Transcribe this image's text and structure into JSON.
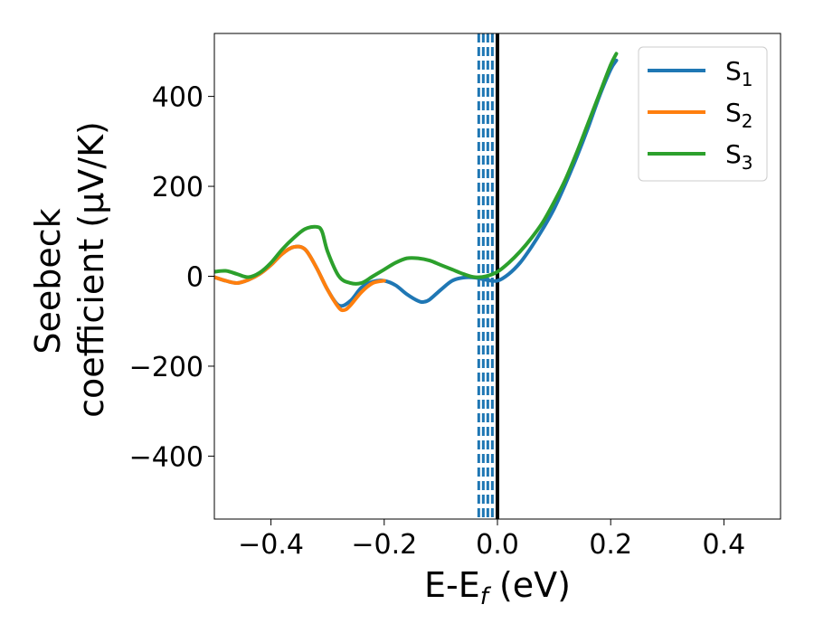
{
  "chart_data": {
    "type": "line",
    "xlabel": {
      "main": "E-E",
      "sub": "f",
      "unit": " (eV)"
    },
    "ylabel": {
      "line1": "Seebeck",
      "line2": "coefficient  (μV/K)"
    },
    "xlim": [
      -0.5,
      0.5
    ],
    "ylim": [
      -540,
      540
    ],
    "xticks": [
      -0.4,
      -0.2,
      0.0,
      0.2,
      0.4
    ],
    "xtick_labels": [
      "−0.4",
      "−0.2",
      "0.0",
      "0.2",
      "0.4"
    ],
    "yticks": [
      -400,
      -200,
      0,
      200,
      400
    ],
    "ytick_labels": [
      "−400",
      "−200",
      "0",
      "200",
      "400"
    ],
    "grid": false,
    "legend_position": "top-right",
    "vlines": [
      {
        "x": 0.0,
        "style": "solid",
        "color": "#000000"
      },
      {
        "x": -0.033,
        "style": "dashed",
        "color": "#1f77b4"
      },
      {
        "x": -0.025,
        "style": "dashed",
        "color": "#1f77b4"
      },
      {
        "x": -0.017,
        "style": "dashed",
        "color": "#1f77b4"
      },
      {
        "x": -0.009,
        "style": "dashed",
        "color": "#1f77b4"
      }
    ],
    "series": [
      {
        "name": "S",
        "sub": "1",
        "color": "#1f77b4",
        "x": [
          -0.5,
          -0.48,
          -0.46,
          -0.44,
          -0.42,
          -0.4,
          -0.38,
          -0.36,
          -0.34,
          -0.32,
          -0.3,
          -0.28,
          -0.26,
          -0.24,
          -0.22,
          -0.2,
          -0.18,
          -0.16,
          -0.14,
          -0.13,
          -0.12,
          -0.1,
          -0.08,
          -0.06,
          -0.04,
          -0.02,
          0.0,
          0.02,
          0.04,
          0.06,
          0.08,
          0.1,
          0.12,
          0.14,
          0.16,
          0.18,
          0.2,
          0.21
        ],
        "y": [
          -2,
          -10,
          -15,
          -8,
          5,
          25,
          50,
          65,
          60,
          20,
          -30,
          -65,
          -55,
          -25,
          -12,
          -10,
          -20,
          -40,
          -55,
          -57,
          -52,
          -30,
          -10,
          -3,
          -3,
          -8,
          -10,
          5,
          30,
          65,
          105,
          150,
          205,
          265,
          330,
          400,
          460,
          480
        ]
      },
      {
        "name": "S",
        "sub": "2",
        "color": "#ff7f0e",
        "x": [
          -0.5,
          -0.48,
          -0.46,
          -0.44,
          -0.42,
          -0.4,
          -0.38,
          -0.36,
          -0.34,
          -0.32,
          -0.3,
          -0.28,
          -0.27,
          -0.26,
          -0.24,
          -0.22,
          -0.2
        ],
        "y": [
          -2,
          -10,
          -15,
          -8,
          5,
          25,
          50,
          65,
          60,
          20,
          -30,
          -70,
          -75,
          -65,
          -35,
          -15,
          -10
        ]
      },
      {
        "name": "S",
        "sub": "3",
        "color": "#2ca02c",
        "x": [
          -0.5,
          -0.48,
          -0.46,
          -0.44,
          -0.42,
          -0.4,
          -0.38,
          -0.36,
          -0.34,
          -0.32,
          -0.31,
          -0.3,
          -0.28,
          -0.26,
          -0.24,
          -0.22,
          -0.2,
          -0.18,
          -0.16,
          -0.14,
          -0.12,
          -0.1,
          -0.08,
          -0.06,
          -0.04,
          -0.02,
          0.0,
          0.02,
          0.04,
          0.06,
          0.08,
          0.1,
          0.12,
          0.14,
          0.16,
          0.18,
          0.2,
          0.21
        ],
        "y": [
          10,
          12,
          5,
          -2,
          8,
          30,
          60,
          85,
          105,
          110,
          100,
          55,
          0,
          -15,
          -15,
          0,
          15,
          30,
          40,
          40,
          35,
          25,
          15,
          5,
          -2,
          0,
          10,
          30,
          55,
          85,
          120,
          165,
          215,
          275,
          340,
          405,
          470,
          495
        ]
      }
    ]
  }
}
